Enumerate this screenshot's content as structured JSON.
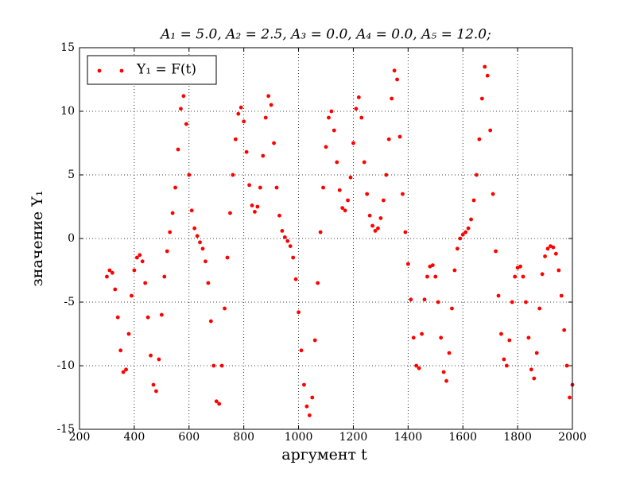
{
  "chart_data": {
    "type": "scatter",
    "title": "A₁ = 5.0, A₂ = 2.5, A₃ = 0.0, A₄ = 0.0, A₅ = 12.0;",
    "x_label": "аргумент t",
    "y_label": "значение Y₁",
    "xlim": [
      200,
      2000
    ],
    "ylim": [
      -15,
      15
    ],
    "xticks": [
      200,
      400,
      600,
      800,
      1000,
      1200,
      1400,
      1600,
      1800,
      2000
    ],
    "yticks": [
      -15,
      -10,
      -5,
      0,
      5,
      10,
      15
    ],
    "grid": true,
    "legend": "upper left",
    "series": [
      {
        "name": "Y₁ = F(t)",
        "color": "#ff0000",
        "x": [
          300,
          310,
          320,
          330,
          340,
          350,
          360,
          370,
          380,
          390,
          400,
          410,
          420,
          430,
          440,
          450,
          460,
          470,
          480,
          490,
          500,
          510,
          520,
          530,
          540,
          550,
          560,
          570,
          580,
          590,
          600,
          610,
          620,
          630,
          640,
          650,
          660,
          670,
          680,
          690,
          700,
          710,
          720,
          730,
          740,
          750,
          760,
          770,
          780,
          790,
          800,
          810,
          820,
          830,
          840,
          850,
          860,
          870,
          880,
          890,
          900,
          910,
          920,
          930,
          940,
          950,
          960,
          970,
          980,
          990,
          1000,
          1010,
          1020,
          1030,
          1040,
          1050,
          1060,
          1070,
          1080,
          1090,
          1100,
          1110,
          1120,
          1130,
          1140,
          1150,
          1160,
          1170,
          1180,
          1190,
          1200,
          1210,
          1220,
          1230,
          1240,
          1250,
          1260,
          1270,
          1280,
          1290,
          1300,
          1310,
          1320,
          1330,
          1340,
          1350,
          1360,
          1370,
          1380,
          1390,
          1400,
          1410,
          1420,
          1430,
          1440,
          1450,
          1460,
          1470,
          1480,
          1490,
          1500,
          1510,
          1520,
          1530,
          1540,
          1550,
          1560,
          1570,
          1580,
          1590,
          1600,
          1610,
          1620,
          1630,
          1640,
          1650,
          1660,
          1670,
          1680,
          1690,
          1700,
          1710,
          1720,
          1730,
          1740,
          1750,
          1760,
          1770,
          1780,
          1790,
          1800,
          1810,
          1820,
          1830,
          1840,
          1850,
          1860,
          1870,
          1880,
          1890,
          1900,
          1910,
          1920,
          1930,
          1940,
          1950,
          1960,
          1970,
          1980,
          1990,
          2000
        ],
        "values": [
          -3.0,
          -2.5,
          -2.7,
          -4.0,
          -6.2,
          -8.8,
          -10.5,
          -10.3,
          -7.5,
          -4.5,
          -2.5,
          -1.5,
          -1.3,
          -1.8,
          -3.5,
          -6.2,
          -9.2,
          -11.5,
          -12.0,
          -9.5,
          -6.0,
          -3.0,
          -1.0,
          0.5,
          2.0,
          4.0,
          7.0,
          10.2,
          11.2,
          9.0,
          5.0,
          2.2,
          0.8,
          0.2,
          -0.3,
          -0.8,
          -1.8,
          -3.5,
          -6.5,
          -10.0,
          -12.8,
          -13.0,
          -10.0,
          -5.5,
          -1.5,
          2.0,
          5.0,
          7.8,
          9.8,
          10.3,
          9.2,
          6.8,
          4.2,
          2.6,
          2.1,
          2.5,
          4.0,
          6.5,
          9.5,
          11.2,
          10.5,
          7.5,
          4.0,
          1.8,
          0.6,
          0.1,
          -0.2,
          -0.6,
          -1.5,
          -3.2,
          -5.8,
          -8.8,
          -11.5,
          -13.2,
          -13.9,
          -12.5,
          -8.0,
          -3.5,
          0.5,
          4.0,
          7.2,
          9.5,
          10.0,
          8.5,
          6.0,
          3.8,
          2.4,
          2.2,
          3.0,
          4.8,
          7.5,
          10.2,
          11.1,
          9.5,
          6.0,
          3.5,
          1.8,
          1.0,
          0.6,
          0.8,
          1.6,
          3.0,
          5.0,
          7.8,
          11.0,
          13.2,
          12.5,
          8.0,
          3.5,
          0.5,
          -2.0,
          -4.8,
          -7.8,
          -10.0,
          -10.2,
          -7.5,
          -4.8,
          -3.0,
          -2.2,
          -2.1,
          -3.0,
          -5.0,
          -7.8,
          -10.5,
          -11.2,
          -9.0,
          -5.5,
          -2.5,
          -0.8,
          0.0,
          0.3,
          0.5,
          0.8,
          1.5,
          3.0,
          5.0,
          7.8,
          11.0,
          13.5,
          12.8,
          8.5,
          3.5,
          -1.0,
          -4.5,
          -7.5,
          -9.5,
          -10.0,
          -8.0,
          -5.0,
          -3.0,
          -2.3,
          -2.2,
          -3.0,
          -5.0,
          -7.8,
          -10.3,
          -11.0,
          -9.0,
          -5.5,
          -2.8,
          -1.4,
          -0.8,
          -0.6,
          -0.7,
          -1.2,
          -2.5,
          -4.5,
          -7.2,
          -10.0,
          -12.5,
          -11.5
        ]
      }
    ]
  }
}
